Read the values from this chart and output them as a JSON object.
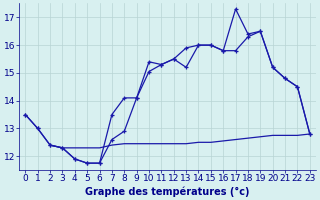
{
  "line1": {
    "x": [
      0,
      1,
      2,
      3,
      4,
      5,
      6,
      7,
      8,
      9,
      10,
      11,
      12,
      13,
      14,
      15,
      16,
      17,
      18,
      19,
      20,
      21,
      22,
      23
    ],
    "y": [
      13.5,
      13.0,
      12.4,
      12.3,
      11.9,
      11.75,
      11.75,
      12.6,
      12.9,
      14.1,
      15.4,
      15.3,
      15.5,
      15.2,
      16.0,
      16.0,
      15.8,
      17.3,
      16.4,
      16.5,
      15.2,
      14.8,
      14.5,
      12.8
    ]
  },
  "line2": {
    "x": [
      0,
      1,
      2,
      3,
      4,
      5,
      6,
      7,
      8,
      9,
      10,
      11,
      12,
      13,
      14,
      15,
      16,
      17,
      18,
      19,
      20,
      21,
      22,
      23
    ],
    "y": [
      13.5,
      13.0,
      12.4,
      12.3,
      11.9,
      11.75,
      11.75,
      13.5,
      14.1,
      14.1,
      15.05,
      15.3,
      15.5,
      15.9,
      16.0,
      16.0,
      15.8,
      15.8,
      16.3,
      16.5,
      15.2,
      14.8,
      14.5,
      12.8
    ]
  },
  "line3": {
    "x": [
      2,
      3,
      4,
      5,
      6,
      7,
      8,
      9,
      10,
      11,
      12,
      13,
      14,
      15,
      16,
      17,
      18,
      19,
      20,
      21,
      22,
      23
    ],
    "y": [
      12.4,
      12.3,
      12.3,
      12.3,
      12.3,
      12.4,
      12.45,
      12.45,
      12.45,
      12.45,
      12.45,
      12.45,
      12.5,
      12.5,
      12.55,
      12.6,
      12.65,
      12.7,
      12.75,
      12.75,
      12.75,
      12.8
    ]
  },
  "line_color": "#1a1aaa",
  "xlabel": "Graphe des températures (°c)",
  "xlim": [
    0,
    23
  ],
  "ylim": [
    11.5,
    17.5
  ],
  "yticks": [
    12,
    13,
    14,
    15,
    16,
    17
  ],
  "xticks": [
    0,
    1,
    2,
    3,
    4,
    5,
    6,
    7,
    8,
    9,
    10,
    11,
    12,
    13,
    14,
    15,
    16,
    17,
    18,
    19,
    20,
    21,
    22,
    23
  ],
  "bg_color": "#d8f0f0",
  "grid_color": "#b8d4d4",
  "label_color": "#00008b",
  "tick_color": "#00008b",
  "font_size": 6.5
}
